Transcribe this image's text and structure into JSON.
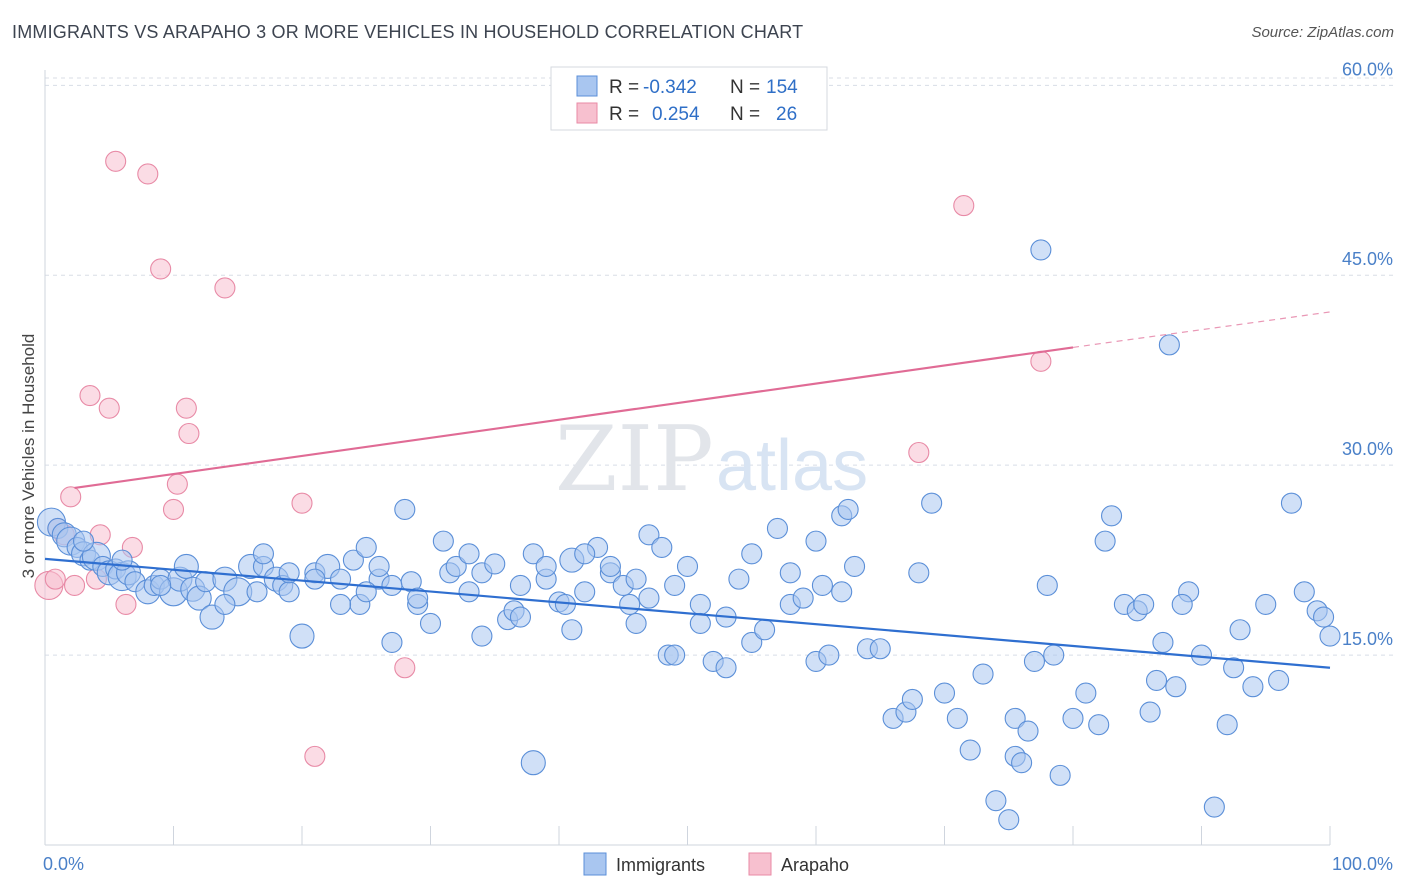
{
  "title": "IMMIGRANTS VS ARAPAHO 3 OR MORE VEHICLES IN HOUSEHOLD CORRELATION CHART",
  "source": "Source: ZipAtlas.com",
  "watermark": {
    "zip": "ZIP",
    "atlas": "atlas"
  },
  "colors": {
    "immigrants_fill": "#a9c6f0",
    "immigrants_stroke": "#5b8fd8",
    "immigrants_line": "#2f6fd0",
    "arapaho_fill": "#f7c0cf",
    "arapaho_stroke": "#e88aa6",
    "arapaho_line": "#e06b95",
    "grid": "#d8dde6",
    "tick_text": "#4a80c8"
  },
  "legend": {
    "rows": [
      {
        "r_label": "R =",
        "r_value": "-0.342",
        "n_label": "N =",
        "n_value": "154"
      },
      {
        "r_label": "R =",
        "r_value": "0.254",
        "n_label": "N =",
        "n_value": "26"
      }
    ]
  },
  "bottom_legend": {
    "immigrants": "Immigrants",
    "arapaho": "Arapaho"
  },
  "chart_data": {
    "type": "scatter",
    "xlabel": "",
    "ylabel": "3 or more Vehicles in Household",
    "x_tick_labels": [
      "0.0%",
      "100.0%"
    ],
    "y_tick_labels": [
      "15.0%",
      "30.0%",
      "45.0%",
      "60.0%"
    ],
    "y_ticks": [
      15,
      30,
      45,
      60
    ],
    "xlim": [
      0,
      100
    ],
    "ylim": [
      0,
      62
    ],
    "grid": true,
    "series": [
      {
        "name": "Immigrants",
        "trend": {
          "x0": 0,
          "y0": 22.6,
          "x1": 100,
          "y1": 14.0
        },
        "points": [
          [
            0.5,
            25.5,
            14
          ],
          [
            1,
            25,
            10
          ],
          [
            1.5,
            24.5,
            12
          ],
          [
            2,
            24,
            14
          ],
          [
            2.5,
            23.5,
            10
          ],
          [
            3,
            23,
            12
          ],
          [
            3.5,
            22.5,
            10
          ],
          [
            4,
            22.8,
            14
          ],
          [
            4.5,
            22,
            10
          ],
          [
            5,
            21.5,
            12
          ],
          [
            5.5,
            21.8,
            10
          ],
          [
            6,
            21.2,
            14
          ],
          [
            6.5,
            21.5,
            12
          ],
          [
            7,
            20.8,
            10
          ],
          [
            8,
            20,
            12
          ],
          [
            8.5,
            20.5,
            10
          ],
          [
            9,
            21,
            10
          ],
          [
            10,
            20,
            14
          ],
          [
            10.5,
            21,
            12
          ],
          [
            11,
            22,
            12
          ],
          [
            11.5,
            20.2,
            12
          ],
          [
            12,
            19.5,
            12
          ],
          [
            12.5,
            20.8,
            10
          ],
          [
            13,
            18,
            12
          ],
          [
            14,
            21,
            12
          ],
          [
            15,
            20,
            14
          ],
          [
            16,
            22,
            12
          ],
          [
            16.5,
            20,
            10
          ],
          [
            17,
            22,
            10
          ],
          [
            18,
            21,
            12
          ],
          [
            18.5,
            20.5,
            10
          ],
          [
            19,
            20,
            10
          ],
          [
            20,
            16.5,
            12
          ],
          [
            21,
            21.5,
            10
          ],
          [
            22,
            22,
            12
          ],
          [
            23,
            21,
            10
          ],
          [
            24,
            22.5,
            10
          ],
          [
            24.5,
            19,
            10
          ],
          [
            25,
            23.5,
            10
          ],
          [
            26,
            21,
            10
          ],
          [
            27,
            20.5,
            10
          ],
          [
            28,
            26.5,
            10
          ],
          [
            28.5,
            20.8,
            10
          ],
          [
            29,
            19,
            10
          ],
          [
            30,
            17.5,
            10
          ],
          [
            31,
            24,
            10
          ],
          [
            31.5,
            21.5,
            10
          ],
          [
            32,
            22,
            10
          ],
          [
            33,
            20,
            10
          ],
          [
            34,
            21.5,
            10
          ],
          [
            35,
            22.2,
            10
          ],
          [
            36,
            17.8,
            10
          ],
          [
            36.5,
            18.5,
            10
          ],
          [
            37,
            20.5,
            10
          ],
          [
            38,
            23,
            10
          ],
          [
            39,
            21,
            10
          ],
          [
            40,
            19.2,
            10
          ],
          [
            40.5,
            19,
            10
          ],
          [
            41,
            22.5,
            12
          ],
          [
            42,
            20,
            10
          ],
          [
            43,
            23.5,
            10
          ],
          [
            44,
            21.5,
            10
          ],
          [
            45,
            20.5,
            10
          ],
          [
            45.5,
            19,
            10
          ],
          [
            46,
            17.5,
            10
          ],
          [
            47,
            24.5,
            10
          ],
          [
            48,
            23.5,
            10
          ],
          [
            48.5,
            15,
            10
          ],
          [
            49,
            20.5,
            10
          ],
          [
            50,
            22,
            10
          ],
          [
            51,
            19,
            10
          ],
          [
            52,
            14.5,
            10
          ],
          [
            53,
            18,
            10
          ],
          [
            54,
            21,
            10
          ],
          [
            55,
            16,
            10
          ],
          [
            56,
            17,
            10
          ],
          [
            57,
            25,
            10
          ],
          [
            58,
            19,
            10
          ],
          [
            59,
            19.5,
            10
          ],
          [
            60,
            14.5,
            10
          ],
          [
            60.5,
            20.5,
            10
          ],
          [
            61,
            15,
            10
          ],
          [
            62,
            26,
            10
          ],
          [
            62.5,
            26.5,
            10
          ],
          [
            63,
            22,
            10
          ],
          [
            64,
            15.5,
            10
          ],
          [
            65,
            15.5,
            10
          ],
          [
            66,
            10,
            10
          ],
          [
            67,
            10.5,
            10
          ],
          [
            67.5,
            11.5,
            10
          ],
          [
            68,
            21.5,
            10
          ],
          [
            69,
            27,
            10
          ],
          [
            70,
            12,
            10
          ],
          [
            71,
            10,
            10
          ],
          [
            72,
            7.5,
            10
          ],
          [
            73,
            13.5,
            10
          ],
          [
            74,
            3.5,
            10
          ],
          [
            75,
            2,
            10
          ],
          [
            75.5,
            7,
            10
          ],
          [
            76,
            6.5,
            10
          ],
          [
            77,
            14.5,
            10
          ],
          [
            78,
            20.5,
            10
          ],
          [
            79,
            5.5,
            10
          ],
          [
            80,
            10,
            10
          ],
          [
            81,
            12,
            10
          ],
          [
            82,
            9.5,
            10
          ],
          [
            82.5,
            24,
            10
          ],
          [
            83,
            26,
            10
          ],
          [
            84,
            19,
            10
          ],
          [
            85,
            18.5,
            10
          ],
          [
            86,
            10.5,
            10
          ],
          [
            87,
            16,
            10
          ],
          [
            88,
            12.5,
            10
          ],
          [
            89,
            20,
            10
          ],
          [
            90,
            15,
            10
          ],
          [
            91,
            3,
            10
          ],
          [
            92,
            9.5,
            10
          ],
          [
            92.5,
            14,
            10
          ],
          [
            93,
            17,
            10
          ],
          [
            94,
            12.5,
            10
          ],
          [
            95,
            19,
            10
          ],
          [
            96,
            13,
            10
          ],
          [
            97,
            27,
            10
          ],
          [
            98,
            20,
            10
          ],
          [
            99,
            18.5,
            10
          ],
          [
            99.5,
            18,
            10
          ],
          [
            100,
            16.5,
            10
          ],
          [
            75.5,
            10,
            10
          ],
          [
            76.5,
            9,
            10
          ],
          [
            78.5,
            15,
            10
          ],
          [
            77.5,
            47,
            10
          ],
          [
            87.5,
            39.5,
            10
          ],
          [
            85.5,
            19,
            10
          ],
          [
            88.5,
            19,
            10
          ],
          [
            86.5,
            13,
            10
          ],
          [
            3,
            24,
            10
          ],
          [
            6,
            22.5,
            10
          ],
          [
            9,
            20.5,
            10
          ],
          [
            14,
            19,
            10
          ],
          [
            17,
            23,
            10
          ],
          [
            19,
            21.5,
            10
          ],
          [
            21,
            21,
            10
          ],
          [
            23,
            19,
            10
          ],
          [
            25,
            20,
            10
          ],
          [
            26,
            22,
            10
          ],
          [
            27,
            16,
            10
          ],
          [
            29,
            19.5,
            10
          ],
          [
            33,
            23,
            10
          ],
          [
            34,
            16.5,
            10
          ],
          [
            37,
            18,
            10
          ],
          [
            38,
            6.5,
            12
          ],
          [
            39,
            22,
            10
          ],
          [
            41,
            17,
            10
          ],
          [
            42,
            23,
            10
          ],
          [
            44,
            22,
            10
          ],
          [
            46,
            21,
            10
          ],
          [
            47,
            19.5,
            10
          ],
          [
            49,
            15,
            10
          ],
          [
            51,
            17.5,
            10
          ],
          [
            53,
            14,
            10
          ],
          [
            55,
            23,
            10
          ],
          [
            58,
            21.5,
            10
          ],
          [
            60,
            24,
            10
          ],
          [
            62,
            20,
            10
          ]
        ]
      },
      {
        "name": "Arapaho",
        "trend": {
          "x0": 2.3,
          "y0": 28.2,
          "x1": 80,
          "y1": 39.3,
          "x_dash_end": 100,
          "y_dash_end": 42.1
        },
        "points": [
          [
            0.3,
            20.5,
            14
          ],
          [
            1,
            25,
            10
          ],
          [
            1.5,
            24.5,
            10
          ],
          [
            2,
            27.5,
            10
          ],
          [
            2.3,
            20.5,
            10
          ],
          [
            3.5,
            35.5,
            10
          ],
          [
            4,
            21,
            10
          ],
          [
            4.3,
            24.5,
            10
          ],
          [
            5,
            34.5,
            10
          ],
          [
            5.5,
            54,
            10
          ],
          [
            6.3,
            19,
            10
          ],
          [
            6.8,
            23.5,
            10
          ],
          [
            8,
            53,
            10
          ],
          [
            9,
            45.5,
            10
          ],
          [
            10,
            26.5,
            10
          ],
          [
            10.3,
            28.5,
            10
          ],
          [
            11,
            34.5,
            10
          ],
          [
            11.2,
            32.5,
            10
          ],
          [
            14,
            44,
            10
          ],
          [
            20,
            27,
            10
          ],
          [
            21,
            7,
            10
          ],
          [
            28,
            14,
            10
          ],
          [
            68,
            31,
            10
          ],
          [
            71.5,
            50.5,
            10
          ],
          [
            77.5,
            38.2,
            10
          ],
          [
            0.8,
            21,
            10
          ]
        ]
      }
    ]
  }
}
